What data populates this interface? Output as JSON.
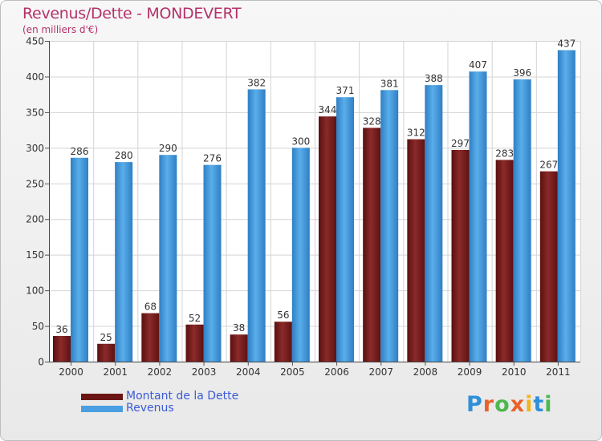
{
  "header": {
    "title": "Revenus/Dette - MONDEVERT",
    "subtitle": "(en milliers d'€)"
  },
  "logo": {
    "text": "Proxiti",
    "colors": [
      "#2f8fd8",
      "#e8622a",
      "#4db84d",
      "#e8622a",
      "#f2b51c",
      "#2f8fd8",
      "#4db84d"
    ]
  },
  "colors": {
    "dette": "#7a1f1f",
    "revenus": "#4a9fe2",
    "title": "#b5316a",
    "legend_text": "#3b5bd6"
  },
  "chart_data": {
    "type": "bar",
    "title": "Revenus/Dette - MONDEVERT",
    "ylabel": "(en milliers d'€)",
    "xlabel": "",
    "ylim": [
      0,
      450
    ],
    "yticks": [
      0,
      50,
      100,
      150,
      200,
      250,
      300,
      350,
      400,
      450
    ],
    "grid": true,
    "legend_position": "bottom-left",
    "categories": [
      "2000",
      "2001",
      "2002",
      "2003",
      "2004",
      "2005",
      "2006",
      "2007",
      "2008",
      "2009",
      "2010",
      "2011"
    ],
    "series": [
      {
        "name": "Montant de la Dette",
        "values": [
          36,
          25,
          68,
          52,
          38,
          56,
          344,
          328,
          312,
          297,
          283,
          267
        ]
      },
      {
        "name": "Revenus",
        "values": [
          286,
          280,
          290,
          276,
          382,
          300,
          371,
          381,
          388,
          407,
          396,
          437
        ]
      }
    ]
  }
}
